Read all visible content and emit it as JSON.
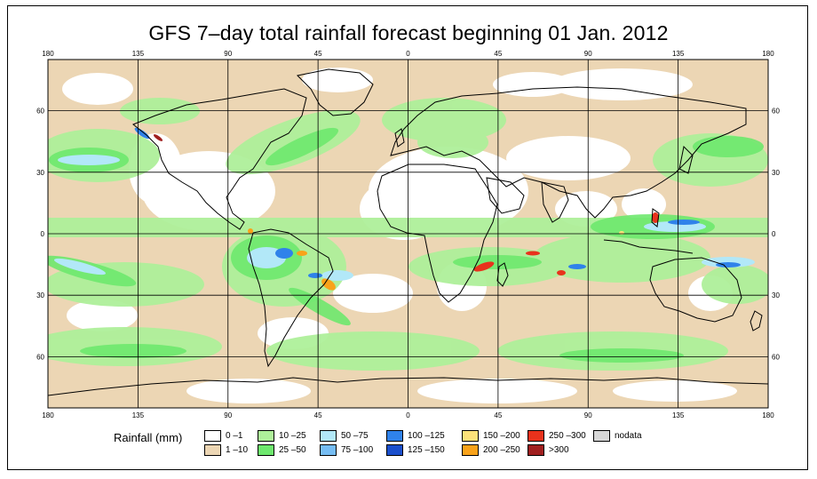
{
  "title": "GFS 7–day total rainfall forecast beginning 01 Jan. 2012",
  "map": {
    "lon_labels": [
      "180",
      "135",
      "90",
      "45",
      "0",
      "45",
      "90",
      "135",
      "180"
    ],
    "lat_labels": [
      "60",
      "30",
      "0",
      "30",
      "60"
    ],
    "projection": "equirectangular",
    "lon_range": [
      -180,
      180
    ],
    "lat_range": [
      -85,
      85
    ],
    "grid": true
  },
  "legend": {
    "title": "Rainfall (mm)",
    "items": [
      {
        "label": "0 –1",
        "color": "#ffffff"
      },
      {
        "label": "1 –10",
        "color": "#ecd6b4"
      },
      {
        "label": "10 –25",
        "color": "#aef09a"
      },
      {
        "label": "25 –50",
        "color": "#6ee86e"
      },
      {
        "label": "50 –75",
        "color": "#b2e8f8"
      },
      {
        "label": "75 –100",
        "color": "#76bdf4"
      },
      {
        "label": "100 –125",
        "color": "#2f82ea"
      },
      {
        "label": "125 –150",
        "color": "#1a4fcc"
      },
      {
        "label": "150 –200",
        "color": "#fde27a"
      },
      {
        "label": "200 –250",
        "color": "#f9a21a"
      },
      {
        "label": "250 –300",
        "color": "#e8321c"
      },
      {
        "label": ">300",
        "color": "#a01f1f"
      },
      {
        "label": "nodata",
        "color": "#d8d8d8"
      }
    ]
  }
}
